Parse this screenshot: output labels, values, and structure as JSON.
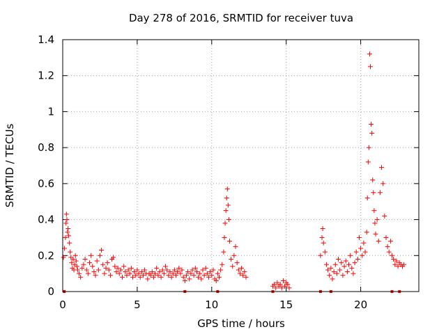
{
  "chart_data": {
    "type": "scatter",
    "title": "Day 278 of 2016, SRMTID for receiver tuva",
    "xlabel": "GPS time / hours",
    "ylabel": "SRMTID / TECUs",
    "xlim": [
      0,
      23.9
    ],
    "ylim": [
      0,
      1.4
    ],
    "xticks": [
      0,
      5,
      10,
      15,
      20
    ],
    "xtick_labels": [
      "0",
      "5",
      "10",
      "15",
      "20"
    ],
    "yticks": [
      0,
      0.2,
      0.4,
      0.6,
      0.8,
      1,
      1.2,
      1.4
    ],
    "ytick_labels": [
      "0",
      "0.2",
      "0.4",
      "0.6",
      "0.8",
      "1",
      "1.2",
      "1.4"
    ],
    "grid": true,
    "marker": "+",
    "marker_color": "#ff0000",
    "series": [
      {
        "name": "SRMTID",
        "points": [
          [
            0.05,
            0.19
          ],
          [
            0.12,
            0.24
          ],
          [
            0.18,
            0.3
          ],
          [
            0.22,
            0.38
          ],
          [
            0.25,
            0.43
          ],
          [
            0.28,
            0.4
          ],
          [
            0.32,
            0.33
          ],
          [
            0.36,
            0.35
          ],
          [
            0.4,
            0.31
          ],
          [
            0.45,
            0.27
          ],
          [
            0.5,
            0.22
          ],
          [
            0.55,
            0.19
          ],
          [
            0.6,
            0.16
          ],
          [
            0.65,
            0.13
          ],
          [
            0.7,
            0.18
          ],
          [
            0.75,
            0.12
          ],
          [
            0.8,
            0.15
          ],
          [
            0.85,
            0.2
          ],
          [
            0.9,
            0.17
          ],
          [
            0.95,
            0.14
          ],
          [
            1.0,
            0.12
          ],
          [
            1.1,
            0.1
          ],
          [
            1.2,
            0.08
          ],
          [
            1.3,
            0.13
          ],
          [
            1.4,
            0.15
          ],
          [
            1.5,
            0.18
          ],
          [
            1.6,
            0.12
          ],
          [
            1.7,
            0.1
          ],
          [
            1.8,
            0.16
          ],
          [
            1.9,
            0.2
          ],
          [
            2.0,
            0.14
          ],
          [
            2.1,
            0.11
          ],
          [
            2.2,
            0.09
          ],
          [
            2.3,
            0.17
          ],
          [
            2.4,
            0.12
          ],
          [
            2.5,
            0.2
          ],
          [
            2.6,
            0.23
          ],
          [
            2.7,
            0.15
          ],
          [
            2.8,
            0.1
          ],
          [
            2.9,
            0.13
          ],
          [
            3.0,
            0.16
          ],
          [
            3.1,
            0.12
          ],
          [
            3.2,
            0.09
          ],
          [
            3.3,
            0.18
          ],
          [
            3.4,
            0.19
          ],
          [
            3.5,
            0.14
          ],
          [
            3.6,
            0.11
          ],
          [
            3.7,
            0.13
          ],
          [
            3.8,
            0.1
          ],
          [
            3.9,
            0.12
          ],
          [
            4.0,
            0.08
          ],
          [
            4.1,
            0.14
          ],
          [
            4.2,
            0.11
          ],
          [
            4.3,
            0.09
          ],
          [
            4.4,
            0.12
          ],
          [
            4.5,
            0.1
          ],
          [
            4.6,
            0.13
          ],
          [
            4.7,
            0.08
          ],
          [
            4.8,
            0.11
          ],
          [
            4.9,
            0.09
          ],
          [
            5.0,
            0.12
          ],
          [
            5.1,
            0.1
          ],
          [
            5.2,
            0.08
          ],
          [
            5.3,
            0.11
          ],
          [
            5.4,
            0.09
          ],
          [
            5.5,
            0.12
          ],
          [
            5.6,
            0.1
          ],
          [
            5.7,
            0.07
          ],
          [
            5.8,
            0.1
          ],
          [
            5.9,
            0.09
          ],
          [
            6.0,
            0.11
          ],
          [
            6.1,
            0.08
          ],
          [
            6.2,
            0.1
          ],
          [
            6.3,
            0.13
          ],
          [
            6.4,
            0.09
          ],
          [
            6.5,
            0.11
          ],
          [
            6.6,
            0.08
          ],
          [
            6.7,
            0.12
          ],
          [
            6.8,
            0.1
          ],
          [
            6.9,
            0.14
          ],
          [
            7.0,
            0.12
          ],
          [
            7.1,
            0.09
          ],
          [
            7.2,
            0.11
          ],
          [
            7.3,
            0.08
          ],
          [
            7.4,
            0.1
          ],
          [
            7.5,
            0.12
          ],
          [
            7.6,
            0.09
          ],
          [
            7.7,
            0.11
          ],
          [
            7.8,
            0.13
          ],
          [
            7.9,
            0.1
          ],
          [
            8.0,
            0.12
          ],
          [
            8.1,
            0.08
          ],
          [
            8.2,
            0.06
          ],
          [
            8.3,
            0.09
          ],
          [
            8.4,
            0.11
          ],
          [
            8.5,
            0.07
          ],
          [
            8.6,
            0.1
          ],
          [
            8.7,
            0.12
          ],
          [
            8.8,
            0.09
          ],
          [
            8.9,
            0.13
          ],
          [
            9.0,
            0.11
          ],
          [
            9.1,
            0.08
          ],
          [
            9.2,
            0.1
          ],
          [
            9.3,
            0.07
          ],
          [
            9.4,
            0.12
          ],
          [
            9.5,
            0.09
          ],
          [
            9.6,
            0.13
          ],
          [
            9.7,
            0.1
          ],
          [
            9.8,
            0.08
          ],
          [
            9.9,
            0.11
          ],
          [
            10.0,
            0.09
          ],
          [
            10.1,
            0.12
          ],
          [
            10.2,
            0.07
          ],
          [
            10.3,
            0.06
          ],
          [
            10.4,
            0.1
          ],
          [
            10.5,
            0.08
          ],
          [
            10.6,
            0.12
          ],
          [
            10.7,
            0.15
          ],
          [
            10.8,
            0.22
          ],
          [
            10.85,
            0.3
          ],
          [
            10.9,
            0.38
          ],
          [
            10.95,
            0.45
          ],
          [
            11.0,
            0.52
          ],
          [
            11.05,
            0.57
          ],
          [
            11.1,
            0.48
          ],
          [
            11.15,
            0.4
          ],
          [
            11.2,
            0.28
          ],
          [
            11.3,
            0.18
          ],
          [
            11.4,
            0.14
          ],
          [
            11.5,
            0.2
          ],
          [
            11.6,
            0.25
          ],
          [
            11.7,
            0.16
          ],
          [
            11.8,
            0.12
          ],
          [
            11.9,
            0.1
          ],
          [
            12.0,
            0.13
          ],
          [
            12.1,
            0.09
          ],
          [
            12.2,
            0.11
          ],
          [
            12.3,
            0.08
          ],
          [
            14.1,
            0.03
          ],
          [
            14.2,
            0.04
          ],
          [
            14.3,
            0.02
          ],
          [
            14.4,
            0.05
          ],
          [
            14.5,
            0.03
          ],
          [
            14.6,
            0.04
          ],
          [
            14.7,
            0.02
          ],
          [
            14.8,
            0.06
          ],
          [
            14.9,
            0.03
          ],
          [
            15.0,
            0.05
          ],
          [
            15.1,
            0.04
          ],
          [
            15.2,
            0.02
          ],
          [
            17.3,
            0.2
          ],
          [
            17.4,
            0.3
          ],
          [
            17.45,
            0.35
          ],
          [
            17.5,
            0.27
          ],
          [
            17.6,
            0.22
          ],
          [
            17.7,
            0.15
          ],
          [
            17.8,
            0.12
          ],
          [
            17.9,
            0.09
          ],
          [
            18.0,
            0.13
          ],
          [
            18.1,
            0.07
          ],
          [
            18.2,
            0.11
          ],
          [
            18.3,
            0.15
          ],
          [
            18.4,
            0.1
          ],
          [
            18.5,
            0.18
          ],
          [
            18.6,
            0.12
          ],
          [
            18.7,
            0.16
          ],
          [
            18.8,
            0.09
          ],
          [
            18.9,
            0.14
          ],
          [
            19.0,
            0.17
          ],
          [
            19.1,
            0.11
          ],
          [
            19.2,
            0.15
          ],
          [
            19.3,
            0.2
          ],
          [
            19.4,
            0.13
          ],
          [
            19.5,
            0.1
          ],
          [
            19.6,
            0.16
          ],
          [
            19.7,
            0.22
          ],
          [
            19.8,
            0.18
          ],
          [
            19.9,
            0.3
          ],
          [
            20.0,
            0.24
          ],
          [
            20.1,
            0.2
          ],
          [
            20.2,
            0.27
          ],
          [
            20.3,
            0.22
          ],
          [
            20.4,
            0.33
          ],
          [
            20.45,
            0.52
          ],
          [
            20.5,
            0.72
          ],
          [
            20.55,
            0.8
          ],
          [
            20.6,
            1.32
          ],
          [
            20.65,
            1.25
          ],
          [
            20.7,
            0.93
          ],
          [
            20.75,
            0.88
          ],
          [
            20.8,
            0.62
          ],
          [
            20.85,
            0.55
          ],
          [
            20.9,
            0.45
          ],
          [
            20.95,
            0.38
          ],
          [
            21.0,
            0.32
          ],
          [
            21.1,
            0.4
          ],
          [
            21.2,
            0.28
          ],
          [
            21.3,
            0.55
          ],
          [
            21.4,
            0.69
          ],
          [
            21.5,
            0.6
          ],
          [
            21.6,
            0.42
          ],
          [
            21.7,
            0.3
          ],
          [
            21.8,
            0.25
          ],
          [
            21.9,
            0.22
          ],
          [
            22.0,
            0.28
          ],
          [
            22.1,
            0.2
          ],
          [
            22.2,
            0.18
          ],
          [
            22.3,
            0.15
          ],
          [
            22.4,
            0.17
          ],
          [
            22.5,
            0.14
          ],
          [
            22.6,
            0.16
          ],
          [
            22.7,
            0.15
          ],
          [
            22.8,
            0.14
          ],
          [
            22.9,
            0.15
          ]
        ]
      }
    ],
    "zero_markers": [
      0.1,
      8.2,
      10.4,
      14.1,
      17.3,
      18.0,
      22.1,
      22.6
    ]
  }
}
